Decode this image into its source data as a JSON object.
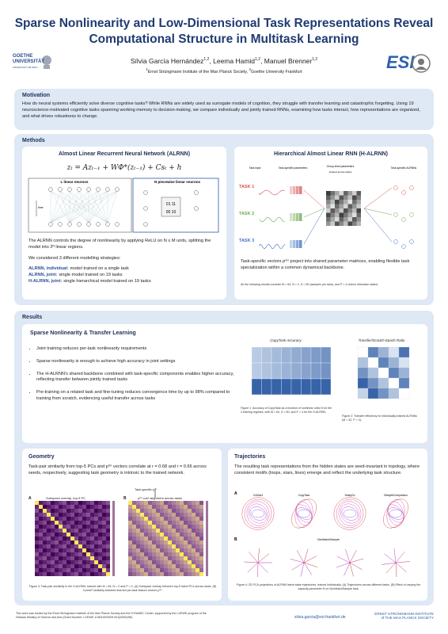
{
  "header": {
    "title": "Sparse Nonlinearity and Low-Dimensional Task Representations Reveal Computational Structure in Multitask Learning",
    "authors": [
      {
        "name": "Sílvia García Hernández",
        "affiliation": "1,2",
        "separator": ","
      },
      {
        "name": "Leema Hamid",
        "affiliation": "1,2",
        "separator": ","
      },
      {
        "name": "Manuel Brenner",
        "affiliation": "1,2"
      }
    ],
    "affiliations": [
      {
        "number": "1",
        "name": "Ernst Strüngmann Institute of the Max Planck Society",
        "separator": ","
      },
      {
        "number": "2",
        "name": "Goethe University Frankfurt"
      }
    ],
    "left_logo": [
      "GOETHE",
      "UNIVERSITÄT",
      "FRANKFURT AM MAIN"
    ],
    "right_logo": "ESI"
  },
  "motivation": {
    "heading": "Motivation",
    "text": "How do neural systems efficiently solve diverse cognitive tasks? While RNNs are widely used as surrogate models of cognition, they struggle with transfer learning and catastrophic forgetting. Using 19 neuroscience-motivated cognitive tasks spanning working memory to decision-making, we compare individually and jointly trained RNNs, examining how tasks interact, how representations are organized, and what drives robustness to change."
  },
  "methods": {
    "heading": "Methods",
    "alrnn": {
      "title": "Almost Linear Recurrent Neural Network (ALRNN)",
      "equation": "zₜ = Azₜ₋₁ + WΦ*(zₜ₋₁) + Csₜ + h",
      "diagram_labels": [
        "L linear neurons",
        "N piecewise linear neurons",
        "time"
      ],
      "text": "The ALRNN controls the degree of nonlinearity by applying ReLU on N ≤ M units, splitting the model into 2ᴺ linear regions.",
      "intro": "We considered 3 different modelling strategies:",
      "strategies": [
        {
          "label": "ALRNN, individual:",
          "text": "model trained on a single task"
        },
        {
          "label": "ALRNN, joint:",
          "text": "single model trained on 19 tasks"
        },
        {
          "label": "H-ALRNN, joint:",
          "text": "single hierarchical model trained on 19 tasks"
        }
      ]
    },
    "h_alrnn": {
      "title": "Hierarchical Almost Linear RNN (H-ALRNN)",
      "column_labels": [
        "Task input",
        "Task-specific parameters",
        "Group-level parameters",
        "Task-specific ALRNNs"
      ],
      "shared_note": "(shared across tasks)",
      "tasks": [
        "TASK 1",
        "TASK 2",
        "TASK 3"
      ],
      "text": "Task-specific vectors p⁽ᵏ⁾ project into shared parameter matrices, enabling flexible task specialization within a common dynamical backbone.",
      "note": "All the following results consider M = 64, N = 2, S = 50 (samples per task), and P = 4 unless otherwise stated."
    }
  },
  "results": {
    "heading": "Results",
    "sparse": {
      "title": "Sparse Nonlinearity & Transfer Learning",
      "bullets": [
        "Joint training reduces per-task nonlinearity requirements",
        "Sparse nonlinearity is enough to achieve high accuracy in joint settings",
        "The H-ALRNN's shared backbone combined with task-specific components enables higher accuracy, reflecting transfer between jointly trained tasks",
        "Pre-training on a related task and fine-tuning reduces convergence time by up to 98% compared to training from scratch, evidencing useful transfer across tasks"
      ],
      "figure1_title": "CopyTask Accuracy",
      "figure1_caption": "Figure 1: Accuracy of CopyTask as a function of nonlinear units N for the 3 training regimes, with M = 64, S = 50, and P = 4 for the H-ALRNN.",
      "figure2_title": "Transfer/Scratch Epoch Ratio",
      "figure2_caption": "Figure 2: Transfer efficiency for individually-trained ALRNNs (M = 32, P = 3)."
    },
    "geometry": {
      "title": "Geometry",
      "text": "Task-pair similarity from top-5 PCs and p⁽ᵏ⁾ vectors correlate at r = 0.68 and r = 0.66 across seeds, respectively, suggesting task geometry is intrinsic to the trained network.",
      "arrow_label": "Task-specific p⁽ᵏ⁾",
      "panel_a": "A",
      "panel_a_title": "Subspace overlap, top-5 PC",
      "panel_b": "B",
      "panel_b_title": "p⁽ᵏ⁾ cos² alignment across tasks",
      "caption": "Figure 3: Task-pair similarity in the H-ALRNN, trained with M = 64, N = 2 and P = 4. (A) Subspace overlap between top-5 latent PCs across tasks. (B) Cosine² similarity between learned per-task feature vectors p⁽ᵏ⁾."
    },
    "trajectories": {
      "title": "Trajectories",
      "text": "The resulting task representations from the hidden states are seed-invariant in topology, where consistent motifs (loops, stars, lines) emerge and reflect the underlying task structure.",
      "panel_a": "A",
      "panel_a_tasks": [
        "CoMod1",
        "CopyTask",
        "DelayGo",
        "DelayedComparison"
      ],
      "panel_b": "B",
      "panel_b_title": "NonMatchSample",
      "caption": "Figure 4: 2D PCA projections of ALRNN latent state trajectories, trained individually. (A) Trajectories across different tasks. (B) Effect of varying the capacity parameter N on NonMatchSample task."
    }
  },
  "footer": {
    "funding": "This work was funded by the Ernst Strüngmann Institute of the Max Planck Society and the DYNAMIC Center, supported by the LOEWE program of the Hessian Ministry of Science and Arts (Grant Number: LOEWE 1/16/519/03/09.001(0009)/98).",
    "email": "silvia.garcia@esi-frankfurt.de",
    "institute": [
      "ERNST STRÜNGMANN INSTITUTE",
      "of THE MAX PLANCK SOCIETY"
    ]
  }
}
